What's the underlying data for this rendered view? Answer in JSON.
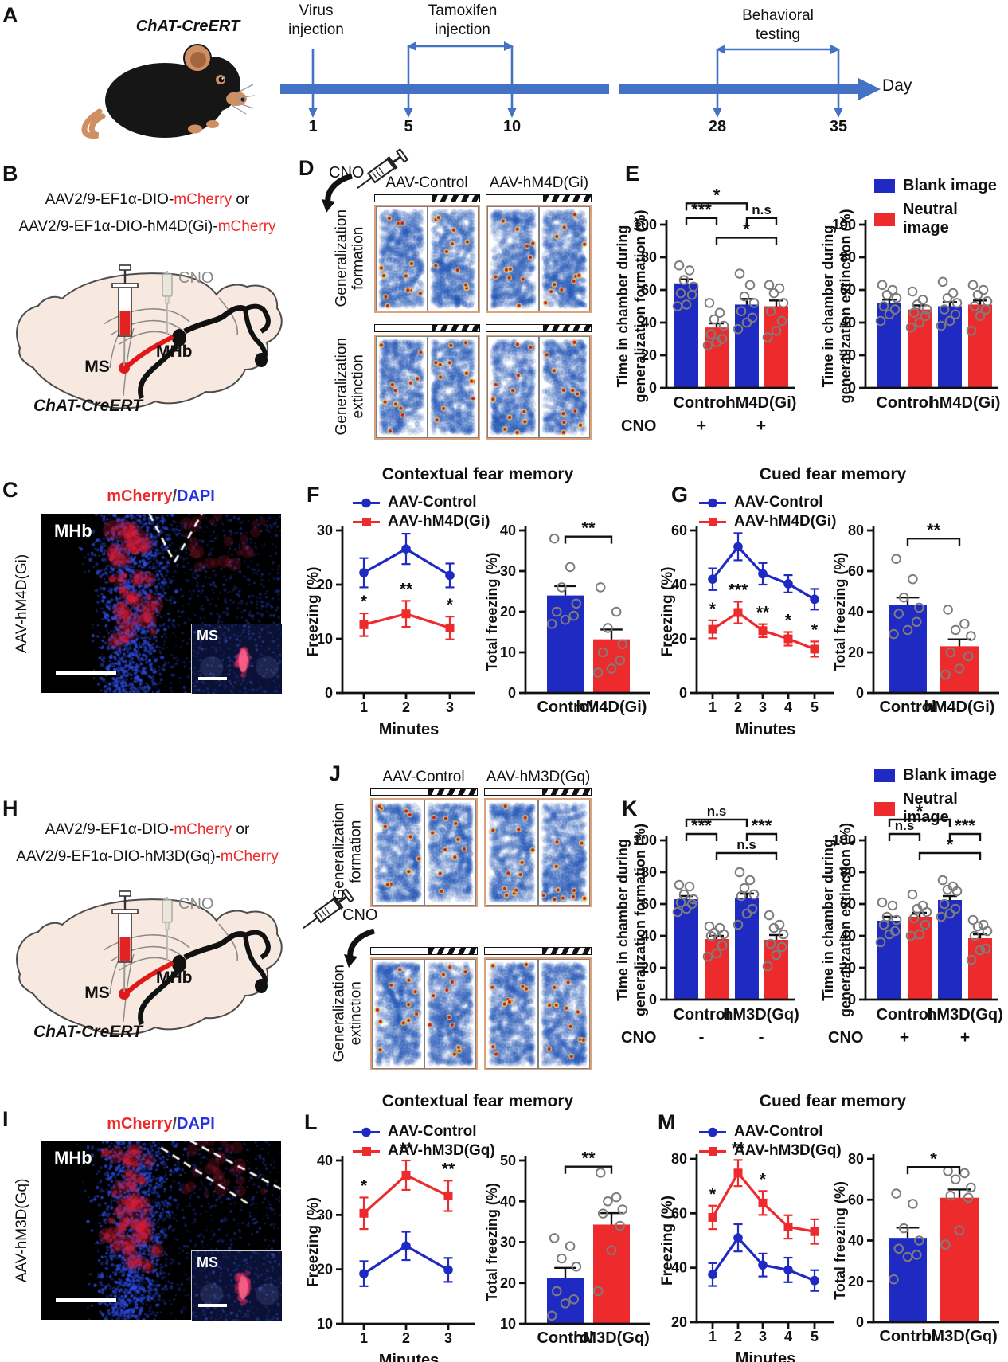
{
  "colors": {
    "blue": "#1e2ac1",
    "red": "#ee2b2c",
    "title": "#e8531e",
    "timeline": "#4472c4",
    "dapi": "#2633e0",
    "mcherry": "#ee2b2c",
    "heat_border": "#dfa278"
  },
  "A": {
    "label": "A",
    "strain": "ChAT-CreERT",
    "virus": "Virus\ninjection",
    "tamoxifen": "Tamoxifen\ninjection",
    "behavior": "Behavioral\ntesting",
    "day": "Day",
    "days": [
      "1",
      "5",
      "10",
      "28",
      "35"
    ]
  },
  "B": {
    "label": "B",
    "construct1": [
      {
        "text": "AAV2/9-EF1α-DIO-",
        "color": "#111111"
      },
      {
        "text": "mCherry",
        "color": "#ee2b2c"
      },
      {
        "text": " or",
        "color": "#111111"
      }
    ],
    "construct2": [
      {
        "text": "AAV2/9-EF1α-DIO-hM4D(Gi)-",
        "color": "#111111"
      },
      {
        "text": "mCherry",
        "color": "#ee2b2c"
      }
    ],
    "ms": "MS",
    "mhb": "MHb",
    "cno": "CNO",
    "strain": "ChAT-CreERT"
  },
  "C": {
    "label": "C",
    "title": [
      {
        "text": "mCherry",
        "color": "#ee2b2c"
      },
      {
        "text": "/",
        "color": "#444444"
      },
      {
        "text": "DAPI",
        "color": "#2633e0"
      }
    ],
    "side": "AAV-hM4D(Gi)",
    "region": "MHb",
    "inset": "MS"
  },
  "D": {
    "label": "D",
    "cno": "CNO",
    "columns": [
      "AAV-Control",
      "AAV-hM4D(Gi)"
    ],
    "rows": [
      "Generalization formation",
      "Generalization extinction"
    ]
  },
  "E": {
    "label": "E",
    "legend": [
      {
        "label": "Blank image",
        "color": "blue"
      },
      {
        "label": "Neutral image",
        "color": "red"
      }
    ],
    "left": {
      "ylabel": [
        "Time in chamber during",
        "generalization formation (%)"
      ],
      "ylim": [
        0,
        100
      ],
      "yticks": [
        0,
        20,
        40,
        60,
        80,
        100
      ],
      "group_labels": [
        "Control",
        "hM4D(Gi)"
      ],
      "bars": [
        {
          "color": "blue",
          "value": 64,
          "err": 2.5,
          "dots": [
            75,
            72,
            66,
            62,
            58,
            57,
            51,
            50
          ]
        },
        {
          "color": "red",
          "value": 37,
          "err": 2.5,
          "dots": [
            52,
            46,
            42,
            38,
            33,
            30,
            28,
            26
          ]
        },
        {
          "color": "blue",
          "value": 51,
          "err": 3.5,
          "dots": [
            70,
            63,
            56,
            52,
            47,
            43,
            40,
            36
          ]
        },
        {
          "color": "red",
          "value": 50,
          "err": 3.5,
          "dots": [
            63,
            61,
            58,
            52,
            47,
            41,
            35,
            31
          ]
        }
      ],
      "brackets": [
        {
          "a": 0,
          "b": 1,
          "label": "***",
          "y": 104
        },
        {
          "a": 0,
          "b": 2,
          "label": "*",
          "y": 113
        },
        {
          "a": 2,
          "b": 3,
          "label": "n.s",
          "y": 104
        },
        {
          "a": 1,
          "b": 3,
          "label": "*",
          "y": 92
        }
      ],
      "cno": {
        "label": "CNO",
        "marks": [
          "+",
          "+"
        ]
      }
    },
    "right": {
      "ylabel": [
        "Time in chamber during",
        "generalization extinction (%)"
      ],
      "ylim": [
        0,
        100
      ],
      "yticks": [
        0,
        20,
        40,
        60,
        80,
        100
      ],
      "group_labels": [
        "Control",
        "hM4D(Gi)"
      ],
      "bars": [
        {
          "color": "blue",
          "value": 52,
          "err": 2,
          "dots": [
            63,
            60,
            57,
            55,
            50,
            48,
            45,
            41
          ]
        },
        {
          "color": "red",
          "value": 48,
          "err": 2.5,
          "dots": [
            59,
            54,
            51,
            48,
            46,
            44,
            40,
            37
          ]
        },
        {
          "color": "blue",
          "value": 50,
          "err": 2.5,
          "dots": [
            65,
            58,
            55,
            52,
            48,
            45,
            41,
            38
          ]
        },
        {
          "color": "red",
          "value": 51,
          "err": 2.5,
          "dots": [
            63,
            60,
            57,
            53,
            50,
            48,
            44,
            35
          ]
        }
      ]
    }
  },
  "F": {
    "label": "F",
    "title": "Contextual fear memory",
    "legend": [
      {
        "label": "AAV-Control",
        "color": "blue",
        "marker": "circle"
      },
      {
        "label": "AAV-hM4D(Gi)",
        "color": "red",
        "marker": "square"
      }
    ],
    "line": {
      "ylabel": "Freezing  (%)",
      "xlabel": "Minutes",
      "ylim": [
        0,
        30
      ],
      "yticks": [
        0,
        10,
        20,
        30
      ],
      "x": [
        "1",
        "2",
        "3"
      ],
      "series": [
        {
          "name": "AAV-Control",
          "color": "blue",
          "marker": "circle",
          "values": [
            22.2,
            26.6,
            21.7
          ],
          "err": [
            2.7,
            2.8,
            2.2
          ]
        },
        {
          "name": "AAV-hM4D(Gi)",
          "color": "red",
          "marker": "square",
          "values": [
            12.6,
            14.6,
            12
          ],
          "err": [
            2.1,
            2.4,
            2.1
          ],
          "stars": [
            "*",
            "**",
            "*"
          ]
        }
      ]
    },
    "bar": {
      "ylabel": "Total freezing  (%)",
      "ylim": [
        0,
        40
      ],
      "yticks": [
        0,
        10,
        20,
        30,
        40
      ],
      "group_labels": [
        "Control",
        "hM4D(Gi)"
      ],
      "bars": [
        {
          "color": "blue",
          "value": 24,
          "err": 2.3,
          "dots": [
            38,
            31,
            26,
            22,
            20,
            19,
            18,
            17
          ]
        },
        {
          "color": "red",
          "value": 13.2,
          "err": 2.4,
          "dots": [
            26,
            20,
            16,
            12,
            10,
            8,
            6,
            5
          ]
        }
      ],
      "brackets": [
        {
          "a": 0,
          "b": 1,
          "label": "**",
          "y": 38.5
        }
      ]
    }
  },
  "G": {
    "label": "G",
    "title": "Cued fear memory",
    "legend": [
      {
        "label": "AAV-Control",
        "color": "blue",
        "marker": "circle"
      },
      {
        "label": "AAV-hM4D(Gi)",
        "color": "red",
        "marker": "square"
      }
    ],
    "line": {
      "ylabel": "Freezing  (%)",
      "xlabel": "Minutes",
      "ylim": [
        0,
        60
      ],
      "yticks": [
        0,
        20,
        40,
        60
      ],
      "x": [
        "1",
        "2",
        "3",
        "4",
        "5"
      ],
      "series": [
        {
          "name": "AAV-Control",
          "color": "blue",
          "marker": "circle",
          "values": [
            42,
            54,
            44,
            40.3,
            34.6
          ],
          "err": [
            4,
            5,
            4,
            3.2,
            3.8
          ]
        },
        {
          "name": "AAV-hM4D(Gi)",
          "color": "red",
          "marker": "square",
          "values": [
            23.5,
            29.7,
            23,
            20,
            16.2
          ],
          "err": [
            3.3,
            4,
            2.4,
            2.5,
            2.8
          ],
          "stars": [
            "*",
            "***",
            "**",
            "*",
            "*"
          ]
        }
      ]
    },
    "bar": {
      "ylabel": "Total freezing  (%)",
      "ylim": [
        0,
        80
      ],
      "yticks": [
        0,
        20,
        40,
        60,
        80
      ],
      "group_labels": [
        "Control",
        "hM4D(Gi)"
      ],
      "bars": [
        {
          "color": "blue",
          "value": 43.4,
          "err": 3.6,
          "dots": [
            66,
            56,
            47,
            42,
            39,
            35,
            31,
            29
          ]
        },
        {
          "color": "red",
          "value": 23,
          "err": 3.4,
          "dots": [
            41,
            34,
            31,
            28,
            20,
            18,
            12,
            9
          ]
        }
      ],
      "brackets": [
        {
          "a": 0,
          "b": 1,
          "label": "**",
          "y": 76
        }
      ]
    }
  },
  "H": {
    "label": "H",
    "construct1": [
      {
        "text": "AAV2/9-EF1α-DIO-",
        "color": "#111111"
      },
      {
        "text": "mCherry",
        "color": "#ee2b2c"
      },
      {
        "text": " or",
        "color": "#111111"
      }
    ],
    "construct2": [
      {
        "text": "AAV2/9-EF1α-DIO-hM3D(Gq)-",
        "color": "#111111"
      },
      {
        "text": "mCherry",
        "color": "#ee2b2c"
      }
    ],
    "ms": "MS",
    "mhb": "MHb",
    "cno": "CNO",
    "strain": "ChAT-CreERT"
  },
  "I": {
    "label": "I",
    "title": [
      {
        "text": "mCherry",
        "color": "#ee2b2c"
      },
      {
        "text": "/",
        "color": "#444444"
      },
      {
        "text": "DAPI",
        "color": "#2633e0"
      }
    ],
    "side": "AAV-hM3D(Gq)",
    "region": "MHb",
    "inset": "MS"
  },
  "J": {
    "label": "J",
    "cno": "CNO",
    "columns": [
      "AAV-Control",
      "AAV-hM3D(Gq)"
    ],
    "rows": [
      "Generalization formation",
      "Generalization extinction"
    ]
  },
  "K": {
    "label": "K",
    "legend": [
      {
        "label": "Blank image",
        "color": "blue"
      },
      {
        "label": "Neutral image",
        "color": "red"
      }
    ],
    "left": {
      "ylabel": [
        "Time in chamber during",
        "generalization formation (%)"
      ],
      "ylim": [
        0,
        100
      ],
      "yticks": [
        0,
        20,
        40,
        60,
        80,
        100
      ],
      "group_labels": [
        "Control",
        "hM3D(Gq)"
      ],
      "bars": [
        {
          "color": "blue",
          "value": 63,
          "err": 2,
          "dots": [
            72,
            71,
            66,
            63,
            61,
            60,
            57,
            55
          ]
        },
        {
          "color": "red",
          "value": 38,
          "err": 2,
          "dots": [
            46,
            45,
            42,
            41,
            40,
            34,
            29,
            27
          ]
        },
        {
          "color": "blue",
          "value": 64,
          "err": 2.5,
          "dots": [
            80,
            75,
            70,
            66,
            65,
            57,
            54,
            47
          ]
        },
        {
          "color": "red",
          "value": 37.5,
          "err": 3,
          "dots": [
            53,
            47,
            45,
            41,
            35,
            33,
            28,
            21
          ]
        }
      ],
      "brackets": [
        {
          "a": 0,
          "b": 1,
          "label": "***",
          "y": 104
        },
        {
          "a": 0,
          "b": 2,
          "label": "n.s",
          "y": 113
        },
        {
          "a": 2,
          "b": 3,
          "label": "***",
          "y": 104
        },
        {
          "a": 1,
          "b": 3,
          "label": "n.s",
          "y": 92
        }
      ],
      "cno": {
        "label": "CNO",
        "marks": [
          "-",
          "-"
        ]
      }
    },
    "right": {
      "ylabel": [
        "Time in chamber during",
        "generalization extinction (%)"
      ],
      "ylim": [
        0,
        100
      ],
      "yticks": [
        0,
        20,
        40,
        60,
        80,
        100
      ],
      "group_labels": [
        "Control",
        "hM3D(Gq)"
      ],
      "bars": [
        {
          "color": "blue",
          "value": 49.5,
          "err": 2.5,
          "dots": [
            61,
            59,
            52,
            50,
            47,
            43,
            41,
            36
          ]
        },
        {
          "color": "red",
          "value": 52,
          "err": 2.5,
          "dots": [
            66,
            59,
            57,
            55,
            51,
            47,
            41,
            40
          ]
        },
        {
          "color": "blue",
          "value": 62.5,
          "err": 2.5,
          "dots": [
            75,
            71,
            69,
            68,
            60,
            57,
            54,
            52
          ]
        },
        {
          "color": "red",
          "value": 38.5,
          "err": 2.5,
          "dots": [
            50,
            47,
            46,
            43,
            40,
            32,
            31,
            25
          ]
        }
      ],
      "brackets": [
        {
          "a": 0,
          "b": 1,
          "label": "n.s",
          "y": 104
        },
        {
          "a": 0,
          "b": 2,
          "label": "*",
          "y": 113
        },
        {
          "a": 2,
          "b": 3,
          "label": "***",
          "y": 104
        },
        {
          "a": 1,
          "b": 3,
          "label": "*",
          "y": 92
        }
      ],
      "cno": {
        "label": "CNO",
        "marks": [
          "+",
          "+"
        ]
      }
    }
  },
  "L": {
    "label": "L",
    "title": "Contextual fear memory",
    "legend": [
      {
        "label": "AAV-Control",
        "color": "blue",
        "marker": "circle"
      },
      {
        "label": "AAV-hM3D(Gq)",
        "color": "red",
        "marker": "square"
      }
    ],
    "line": {
      "ylabel": "Freezing  (%)",
      "xlabel": "Minutes",
      "ylim": [
        10,
        40
      ],
      "yticks": [
        10,
        20,
        30,
        40
      ],
      "x": [
        "1",
        "2",
        "3"
      ],
      "series": [
        {
          "name": "AAV-Control",
          "color": "blue",
          "marker": "circle",
          "values": [
            19.2,
            24.3,
            19.9
          ],
          "err": [
            2.3,
            2.6,
            2.2
          ]
        },
        {
          "name": "AAV-hM3D(Gq)",
          "color": "red",
          "marker": "square",
          "values": [
            30.3,
            37.3,
            33.5
          ],
          "err": [
            2.9,
            2.7,
            2.8
          ],
          "stars": [
            "*",
            "**",
            "**"
          ]
        }
      ]
    },
    "bar": {
      "ylabel": "Total freezing  (%)",
      "ylim": [
        10,
        50
      ],
      "yticks": [
        10,
        20,
        30,
        40,
        50
      ],
      "group_labels": [
        "Control",
        "hM3D(Gq)"
      ],
      "bars": [
        {
          "color": "blue",
          "value": 21.3,
          "err": 2.4,
          "dots": [
            31,
            29,
            26,
            24,
            18,
            16,
            15,
            12
          ]
        },
        {
          "color": "red",
          "value": 34.3,
          "err": 2.8,
          "dots": [
            47,
            41,
            40,
            38,
            37,
            34,
            28,
            18
          ]
        }
      ],
      "brackets": [
        {
          "a": 0,
          "b": 1,
          "label": "**",
          "y": 48.5
        }
      ]
    }
  },
  "M": {
    "label": "M",
    "title": "Cued fear memory",
    "legend": [
      {
        "label": "AAV-Control",
        "color": "blue",
        "marker": "circle"
      },
      {
        "label": "AAV-hM3D(Gq)",
        "color": "red",
        "marker": "square"
      }
    ],
    "line": {
      "ylabel": "Freezing  (%)",
      "xlabel": "Minutes",
      "ylim": [
        20,
        80
      ],
      "yticks": [
        20,
        40,
        60,
        80
      ],
      "x": [
        "1",
        "2",
        "3",
        "4",
        "5"
      ],
      "series": [
        {
          "name": "AAV-Control",
          "color": "blue",
          "marker": "circle",
          "values": [
            37.5,
            51,
            41,
            39.2,
            35.3
          ],
          "err": [
            4.2,
            5,
            4.2,
            4.5,
            3.8
          ]
        },
        {
          "name": "AAV-hM3D(Gq)",
          "color": "red",
          "marker": "square",
          "values": [
            58.5,
            74.8,
            63.8,
            55,
            53.3
          ],
          "err": [
            4.3,
            4.8,
            4.4,
            4.3,
            4.5
          ],
          "stars": [
            "*",
            "**",
            "*",
            "",
            ""
          ]
        }
      ]
    },
    "bar": {
      "ylabel": "Total freezing  (%)",
      "ylim": [
        0,
        80
      ],
      "yticks": [
        0,
        20,
        40,
        60,
        80
      ],
      "group_labels": [
        "Control",
        "hM3D(Gq)"
      ],
      "bars": [
        {
          "color": "blue",
          "value": 41.3,
          "err": 5,
          "dots": [
            63,
            58,
            46,
            40,
            36,
            33,
            32,
            21
          ]
        },
        {
          "color": "red",
          "value": 61,
          "err": 4,
          "dots": [
            74,
            73,
            70,
            66,
            62,
            61,
            45,
            38
          ]
        }
      ],
      "brackets": [
        {
          "a": 0,
          "b": 1,
          "label": "*",
          "y": 76
        }
      ]
    }
  }
}
